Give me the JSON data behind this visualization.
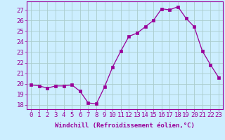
{
  "x": [
    0,
    1,
    2,
    3,
    4,
    5,
    6,
    7,
    8,
    9,
    10,
    11,
    12,
    13,
    14,
    15,
    16,
    17,
    18,
    19,
    20,
    21,
    22,
    23
  ],
  "y": [
    19.9,
    19.8,
    19.6,
    19.8,
    19.8,
    19.9,
    19.3,
    18.2,
    18.1,
    19.7,
    21.6,
    23.1,
    24.5,
    24.8,
    25.4,
    26.0,
    27.1,
    27.0,
    27.3,
    26.2,
    25.4,
    23.1,
    21.8,
    20.6
  ],
  "line_color": "#990099",
  "marker": "s",
  "marker_size": 2.2,
  "bg_color": "#cceeff",
  "grid_color": "#aacccc",
  "xlabel": "Windchill (Refroidissement éolien,°C)",
  "ylabel_ticks": [
    18,
    19,
    20,
    21,
    22,
    23,
    24,
    25,
    26,
    27
  ],
  "ylim": [
    17.6,
    27.8
  ],
  "xlim": [
    -0.5,
    23.5
  ],
  "xlabel_fontsize": 6.5,
  "tick_fontsize": 6.5
}
